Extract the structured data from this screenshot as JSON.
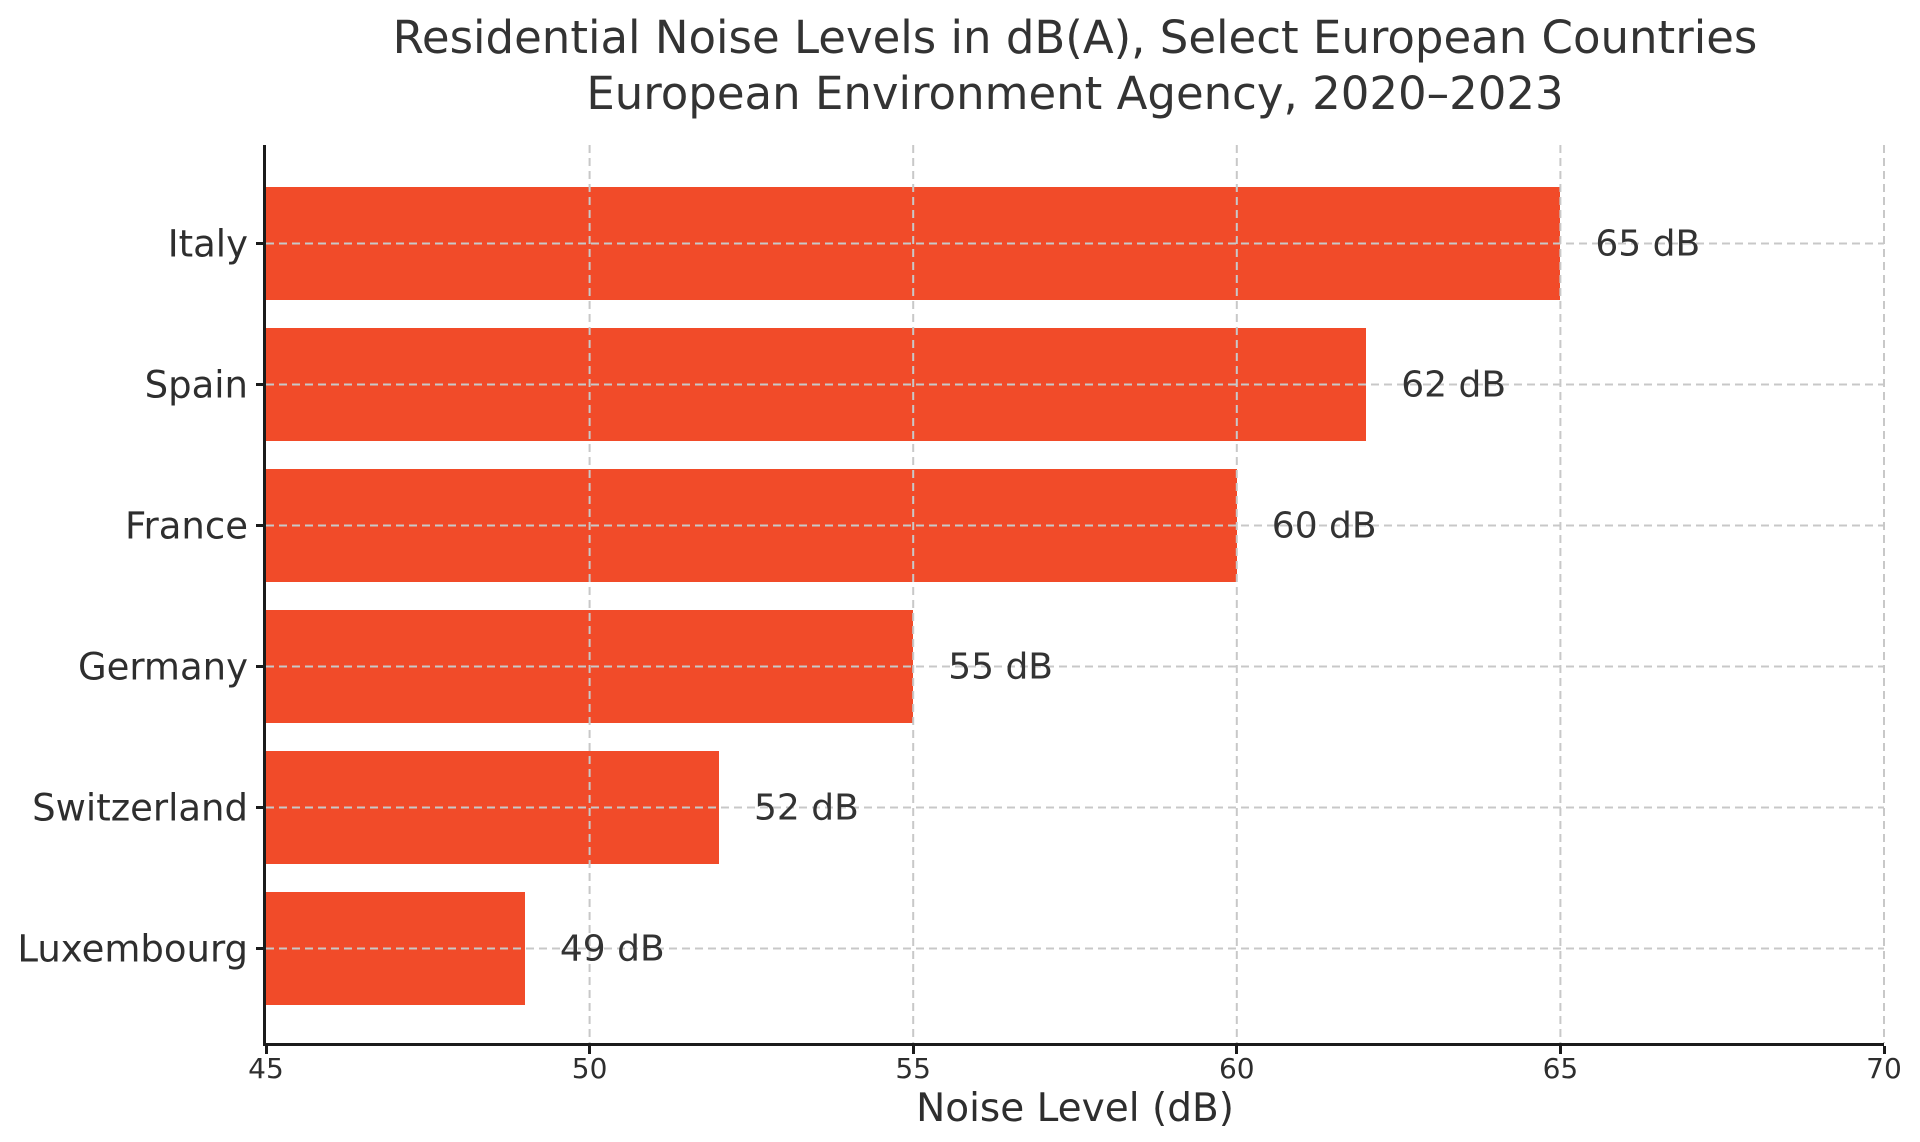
{
  "chart_data": {
    "type": "bar",
    "orientation": "horizontal",
    "title": "Residential Noise Levels in dB(A), Select European Countries",
    "subtitle": "European Environment Agency, 2020–2023",
    "categories": [
      "Italy",
      "Spain",
      "France",
      "Germany",
      "Switzerland",
      "Luxembourg"
    ],
    "values": [
      65,
      62,
      60,
      55,
      52,
      49
    ],
    "value_labels": [
      "65 dB",
      "62 dB",
      "60 dB",
      "55 dB",
      "52 dB",
      "49 dB"
    ],
    "xlabel": "Noise Level (dB)",
    "xlim": [
      45,
      70
    ],
    "xticks": [
      45,
      50,
      55,
      60,
      65,
      70
    ],
    "grid": "dashed gridlines on both axes, drawn over bars",
    "legend": "none",
    "colors": {
      "bar": "#F14B29",
      "grid": "#C8C8C8",
      "axis": "#1B1B1B",
      "text": "#2E2E2E",
      "value_text": "#333333"
    }
  }
}
